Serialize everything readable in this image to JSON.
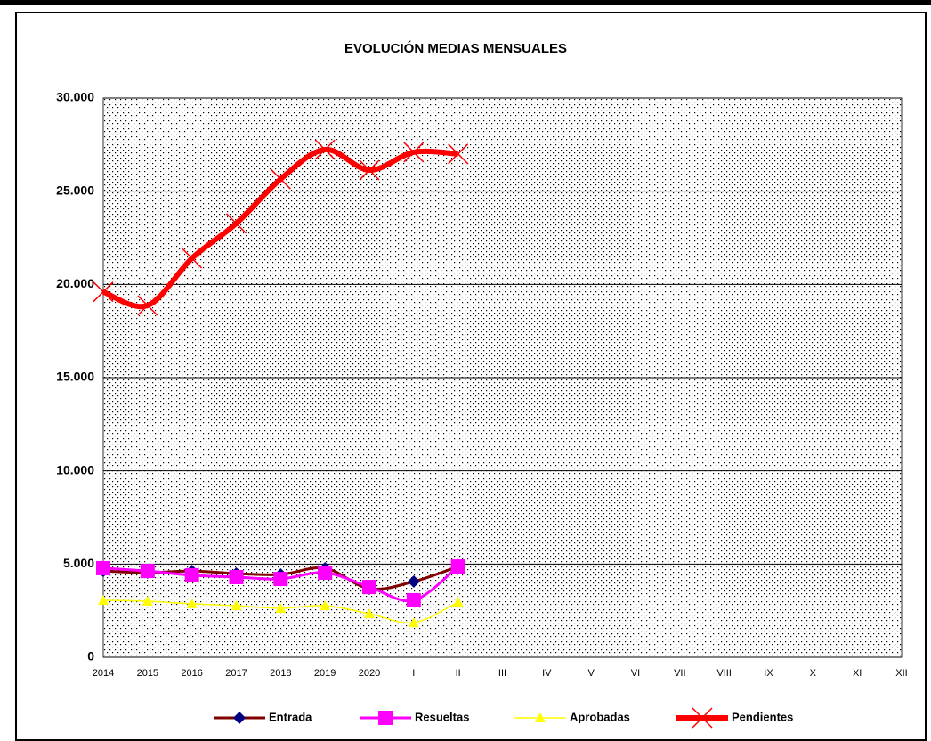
{
  "chart_data": {
    "type": "line",
    "title": "EVOLUCIÓN MEDIAS MENSUALES",
    "categories": [
      "2014",
      "2015",
      "2016",
      "2017",
      "2018",
      "2019",
      "2020",
      "I",
      "II",
      "III",
      "IV",
      "V",
      "VI",
      "VII",
      "VIII",
      "IX",
      "X",
      "XI",
      "XII"
    ],
    "series": [
      {
        "name": "Entrada",
        "color": "#800000",
        "marker_color": "#000080",
        "marker": "diamond",
        "values": [
          4630,
          4540,
          4630,
          4490,
          4440,
          4780,
          3680,
          4060,
          4870,
          null,
          null,
          null,
          null,
          null,
          null,
          null,
          null,
          null,
          null
        ]
      },
      {
        "name": "Resueltas",
        "color": "#ff00ff",
        "marker_color": "#ff00ff",
        "marker": "square",
        "values": [
          4780,
          4630,
          4400,
          4300,
          4200,
          4540,
          3770,
          3060,
          4870,
          null,
          null,
          null,
          null,
          null,
          null,
          null,
          null,
          null,
          null
        ]
      },
      {
        "name": "Aprobadas",
        "color": "#ffff00",
        "marker_color": "#ffff00",
        "marker": "triangle",
        "values": [
          3060,
          3010,
          2870,
          2770,
          2630,
          2770,
          2340,
          1860,
          2960,
          null,
          null,
          null,
          null,
          null,
          null,
          null,
          null,
          null,
          null
        ]
      },
      {
        "name": "Pendientes",
        "color": "#ff0000",
        "marker_color": "#ff0000",
        "marker": "x",
        "values": [
          19600,
          18870,
          21400,
          23270,
          25650,
          27230,
          26130,
          27090,
          27000,
          null,
          null,
          null,
          null,
          null,
          null,
          null,
          null,
          null,
          null
        ]
      }
    ],
    "ylim": [
      0,
      30000
    ],
    "yticks": [
      0,
      {
        "value": 5000,
        "label": "5.000"
      },
      {
        "value": 10000,
        "label": "10.000"
      },
      {
        "value": 15000,
        "label": "15.000"
      },
      {
        "value": 20000,
        "label": "20.000"
      },
      {
        "value": 25000,
        "label": "25.000"
      },
      {
        "value": 30000,
        "label": "30.000"
      }
    ],
    "grid": true,
    "legend": "bottom"
  }
}
